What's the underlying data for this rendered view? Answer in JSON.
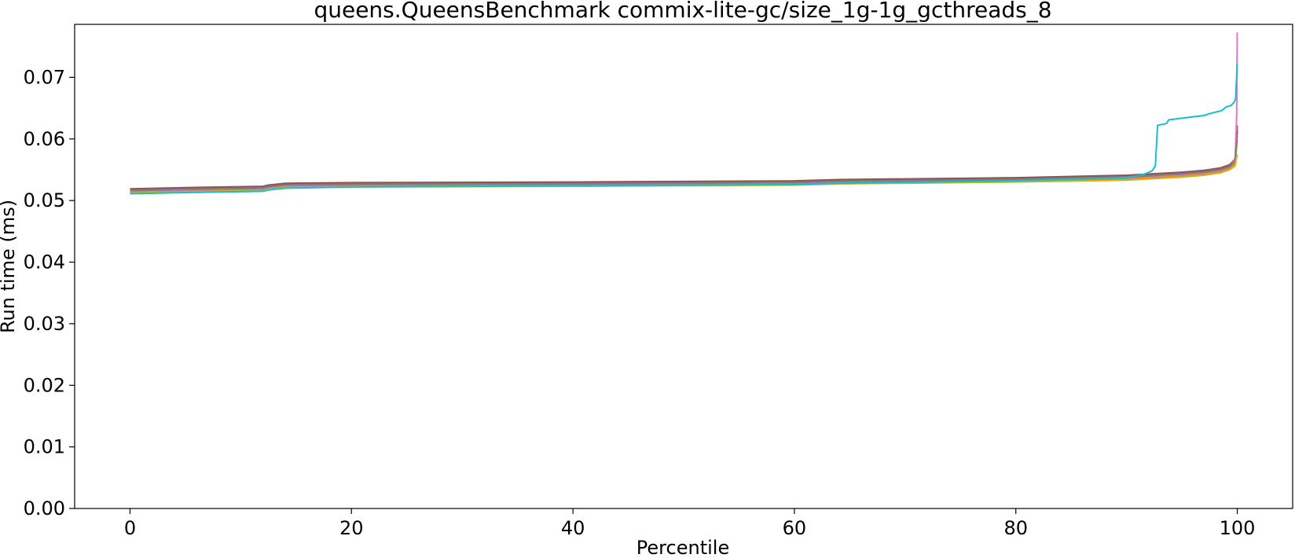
{
  "chart_data": {
    "type": "line",
    "title": "queens.QueensBenchmark commix-lite-gc/size_1g-1g_gcthreads_8",
    "xlabel": "Percentile",
    "ylabel": "Run time (ms)",
    "xlim": [
      -5,
      105
    ],
    "ylim": [
      0.0,
      0.0786
    ],
    "xticks": [
      0,
      20,
      40,
      60,
      80,
      100
    ],
    "xtick_labels": [
      "0",
      "20",
      "40",
      "60",
      "80",
      "100"
    ],
    "yticks": [
      0.0,
      0.01,
      0.02,
      0.03,
      0.04,
      0.05,
      0.06,
      0.07
    ],
    "ytick_labels": [
      "0.00",
      "0.01",
      "0.02",
      "0.03",
      "0.04",
      "0.05",
      "0.06",
      "0.07"
    ],
    "grid": false,
    "legend": false,
    "series": [
      {
        "color": "#1f77b4",
        "x": [
          0,
          5,
          12,
          12.5,
          14,
          20,
          40,
          60,
          64,
          80,
          90,
          95,
          97,
          98.5,
          99.3,
          99.8,
          100
        ],
        "y": [
          0.0514,
          0.0516,
          0.0518,
          0.052,
          0.0523,
          0.0524,
          0.0525,
          0.0527,
          0.0529,
          0.0532,
          0.0536,
          0.0541,
          0.0544,
          0.0548,
          0.0553,
          0.0562,
          0.0615
        ]
      },
      {
        "color": "#ff7f0e",
        "x": [
          0,
          5,
          12,
          12.5,
          14,
          20,
          40,
          60,
          64,
          80,
          90,
          95,
          97,
          98.5,
          99.3,
          99.8,
          100
        ],
        "y": [
          0.0513,
          0.0515,
          0.0517,
          0.0519,
          0.0522,
          0.0523,
          0.0524,
          0.0526,
          0.0528,
          0.0531,
          0.0535,
          0.054,
          0.0543,
          0.0547,
          0.0552,
          0.056,
          0.0598
        ]
      },
      {
        "color": "#2ca02c",
        "x": [
          0,
          5,
          12,
          12.5,
          14,
          20,
          40,
          60,
          64,
          80,
          90,
          95,
          97,
          98.5,
          99.3,
          99.8,
          100
        ],
        "y": [
          0.0516,
          0.0518,
          0.052,
          0.0522,
          0.0525,
          0.0526,
          0.0527,
          0.0529,
          0.0531,
          0.0534,
          0.0538,
          0.0543,
          0.0546,
          0.055,
          0.0555,
          0.0564,
          0.0618
        ]
      },
      {
        "color": "#d62728",
        "x": [
          0,
          5,
          12,
          12.5,
          14,
          20,
          40,
          60,
          64,
          80,
          90,
          95,
          97,
          98.5,
          99.3,
          99.8,
          100
        ],
        "y": [
          0.0518,
          0.052,
          0.0522,
          0.0524,
          0.0527,
          0.0528,
          0.0529,
          0.0531,
          0.0533,
          0.0536,
          0.054,
          0.0545,
          0.0548,
          0.0552,
          0.0557,
          0.0566,
          0.0622
        ]
      },
      {
        "color": "#9467bd",
        "x": [
          0,
          5,
          12,
          12.5,
          14,
          20,
          40,
          60,
          64,
          80,
          90,
          95,
          97,
          98.5,
          99.3,
          99.8,
          100
        ],
        "y": [
          0.0517,
          0.0519,
          0.0521,
          0.0523,
          0.0526,
          0.0527,
          0.0528,
          0.053,
          0.0532,
          0.0535,
          0.0539,
          0.0544,
          0.0547,
          0.0551,
          0.0556,
          0.0565,
          0.062
        ]
      },
      {
        "color": "#8c564b",
        "x": [
          0,
          5,
          12,
          12.5,
          14,
          20,
          40,
          60,
          64,
          80,
          90,
          95,
          97,
          98.5,
          99.3,
          99.8,
          100
        ],
        "y": [
          0.0519,
          0.0521,
          0.0523,
          0.0525,
          0.0528,
          0.0529,
          0.053,
          0.0532,
          0.0534,
          0.0537,
          0.0541,
          0.0546,
          0.0549,
          0.0553,
          0.0558,
          0.0567,
          0.0612
        ]
      },
      {
        "color": "#e377c2",
        "x": [
          0,
          5,
          12,
          12.5,
          14,
          20,
          40,
          60,
          64,
          80,
          90,
          95,
          97,
          98.5,
          99.3,
          99.8,
          99.95,
          100
        ],
        "y": [
          0.0515,
          0.0517,
          0.0519,
          0.0521,
          0.0524,
          0.0525,
          0.0526,
          0.0528,
          0.053,
          0.0533,
          0.0537,
          0.0542,
          0.0545,
          0.0549,
          0.0554,
          0.0566,
          0.064,
          0.0773
        ]
      },
      {
        "color": "#7f7f7f",
        "x": [
          0,
          5,
          12,
          12.5,
          14,
          20,
          40,
          60,
          64,
          80,
          90,
          95,
          97,
          98.5,
          99.3,
          99.8,
          100
        ],
        "y": [
          0.0516,
          0.0518,
          0.052,
          0.0522,
          0.0525,
          0.0526,
          0.0527,
          0.0529,
          0.0531,
          0.0534,
          0.0538,
          0.0543,
          0.0546,
          0.055,
          0.0555,
          0.0563,
          0.0605
        ]
      },
      {
        "color": "#bcbd22",
        "x": [
          0,
          5,
          12,
          12.5,
          14,
          20,
          40,
          60,
          64,
          80,
          90,
          95,
          97,
          98.5,
          99.3,
          99.8,
          100
        ],
        "y": [
          0.0512,
          0.0514,
          0.0516,
          0.0518,
          0.0521,
          0.0522,
          0.0523,
          0.0525,
          0.0527,
          0.053,
          0.0533,
          0.0538,
          0.0541,
          0.0545,
          0.055,
          0.0556,
          0.0575
        ]
      },
      {
        "color": "#17becf",
        "x": [
          0,
          5,
          12,
          12.5,
          14,
          20,
          40,
          60,
          64,
          80,
          90,
          91.5,
          92.3,
          92.6,
          92.8,
          93.6,
          93.8,
          96,
          97,
          97.5,
          98.6,
          99,
          99.4,
          99.7,
          99.85,
          100
        ],
        "y": [
          0.0511,
          0.0513,
          0.0515,
          0.0517,
          0.052,
          0.0522,
          0.0524,
          0.0526,
          0.0528,
          0.0532,
          0.0537,
          0.0542,
          0.0548,
          0.0556,
          0.0622,
          0.0625,
          0.0631,
          0.0636,
          0.0638,
          0.0641,
          0.0646,
          0.0652,
          0.0654,
          0.0659,
          0.0665,
          0.0723
        ]
      }
    ]
  }
}
